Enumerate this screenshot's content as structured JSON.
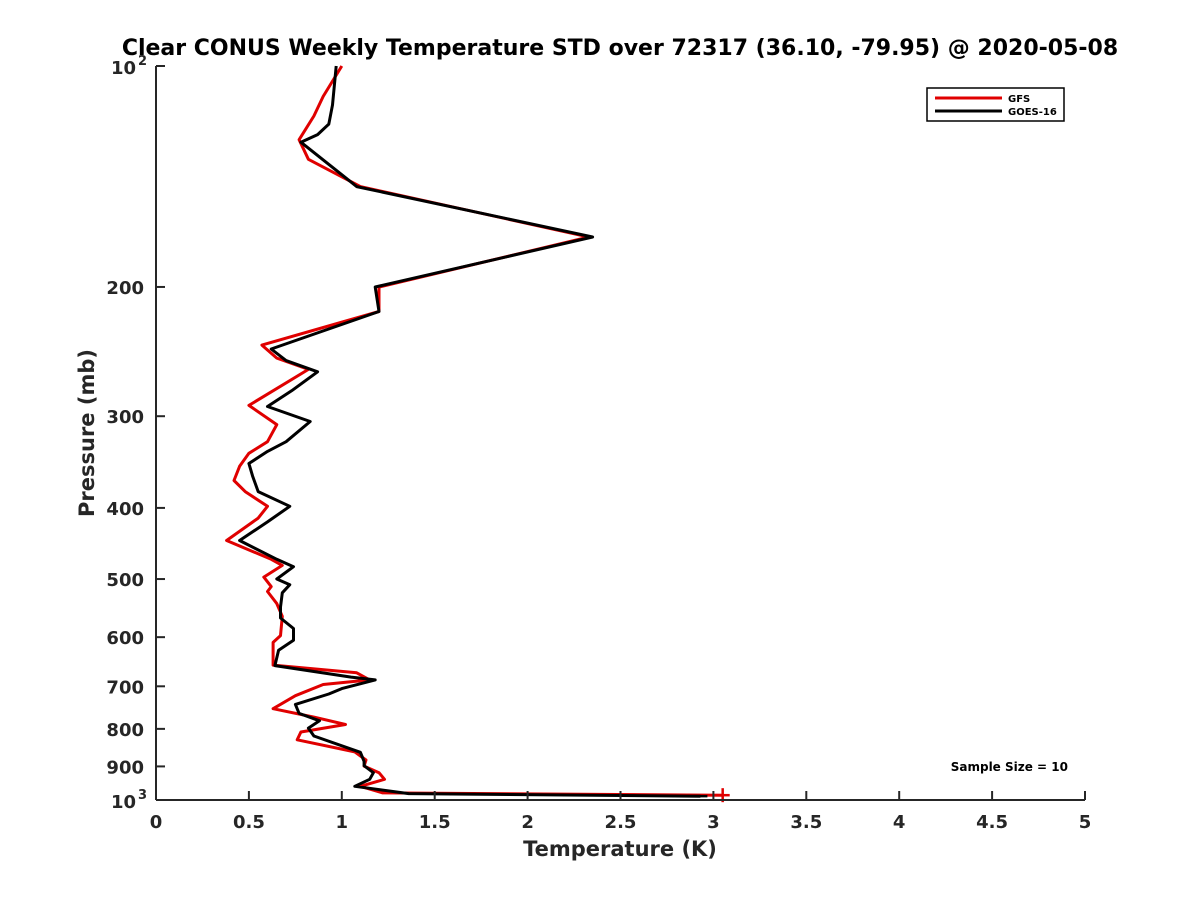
{
  "chart_data": {
    "type": "line",
    "title": "Clear CONUS Weekly Temperature STD over 72317 (36.10, -79.95) @ 2020-05-08",
    "xlabel": "Temperature (K)",
    "ylabel": "Pressure (mb)",
    "xlim": [
      0,
      5
    ],
    "ylim": [
      100,
      1000
    ],
    "y_scale": "log",
    "y_reversed": true,
    "x_ticks": [
      {
        "value": 0,
        "label": "0"
      },
      {
        "value": 0.5,
        "label": "0.5"
      },
      {
        "value": 1,
        "label": "1"
      },
      {
        "value": 1.5,
        "label": "1.5"
      },
      {
        "value": 2,
        "label": "2"
      },
      {
        "value": 2.5,
        "label": "2.5"
      },
      {
        "value": 3,
        "label": "3"
      },
      {
        "value": 3.5,
        "label": "3.5"
      },
      {
        "value": 4,
        "label": "4"
      },
      {
        "value": 4.5,
        "label": "4.5"
      },
      {
        "value": 5,
        "label": "5"
      }
    ],
    "y_ticks": [
      {
        "value": 100,
        "label": "10",
        "exp": "2"
      },
      {
        "value": 200,
        "label": "200"
      },
      {
        "value": 300,
        "label": "300"
      },
      {
        "value": 400,
        "label": "400"
      },
      {
        "value": 500,
        "label": "500"
      },
      {
        "value": 600,
        "label": "600"
      },
      {
        "value": 700,
        "label": "700"
      },
      {
        "value": 800,
        "label": "800"
      },
      {
        "value": 900,
        "label": "900"
      },
      {
        "value": 1000,
        "label": "10",
        "exp": "3"
      }
    ],
    "grid": false,
    "legend_position": "top-right",
    "annotation": "Sample Size = 10",
    "series": [
      {
        "name": "GFS",
        "color": "#e00000",
        "points": [
          [
            1.0,
            100
          ],
          [
            0.9,
            110
          ],
          [
            0.85,
            117
          ],
          [
            0.77,
            126
          ],
          [
            0.82,
            134
          ],
          [
            1.1,
            146
          ],
          [
            2.33,
            171
          ],
          [
            1.2,
            200
          ],
          [
            1.2,
            216
          ],
          [
            0.57,
            240
          ],
          [
            0.65,
            250
          ],
          [
            0.82,
            259
          ],
          [
            0.5,
            290
          ],
          [
            0.65,
            308
          ],
          [
            0.6,
            325
          ],
          [
            0.5,
            337
          ],
          [
            0.45,
            351
          ],
          [
            0.42,
            367
          ],
          [
            0.48,
            380
          ],
          [
            0.6,
            398
          ],
          [
            0.55,
            413
          ],
          [
            0.38,
            443
          ],
          [
            0.62,
            470
          ],
          [
            0.68,
            479
          ],
          [
            0.58,
            497
          ],
          [
            0.62,
            512
          ],
          [
            0.6,
            520
          ],
          [
            0.65,
            540
          ],
          [
            0.68,
            562
          ],
          [
            0.67,
            597
          ],
          [
            0.63,
            610
          ],
          [
            0.63,
            655
          ],
          [
            1.08,
            671
          ],
          [
            1.15,
            686
          ],
          [
            0.9,
            696
          ],
          [
            0.75,
            721
          ],
          [
            0.63,
            751
          ],
          [
            0.85,
            771
          ],
          [
            1.02,
            789
          ],
          [
            0.78,
            808
          ],
          [
            0.76,
            828
          ],
          [
            1.07,
            860
          ],
          [
            1.13,
            882
          ],
          [
            1.12,
            899
          ],
          [
            1.2,
            918
          ],
          [
            1.23,
            937
          ],
          [
            1.1,
            958
          ],
          [
            1.22,
            978
          ],
          [
            3.05,
            985
          ]
        ]
      },
      {
        "name": "GOES-16",
        "color": "#000000",
        "points": [
          [
            0.97,
            100
          ],
          [
            0.95,
            113
          ],
          [
            0.93,
            120
          ],
          [
            0.87,
            124
          ],
          [
            0.78,
            127
          ],
          [
            1.08,
            146
          ],
          [
            2.35,
            171
          ],
          [
            1.18,
            200
          ],
          [
            1.2,
            216
          ],
          [
            0.62,
            243
          ],
          [
            0.7,
            252
          ],
          [
            0.87,
            261
          ],
          [
            0.73,
            277
          ],
          [
            0.6,
            291
          ],
          [
            0.83,
            305
          ],
          [
            0.7,
            325
          ],
          [
            0.6,
            335
          ],
          [
            0.5,
            348
          ],
          [
            0.52,
            362
          ],
          [
            0.55,
            380
          ],
          [
            0.72,
            398
          ],
          [
            0.6,
            418
          ],
          [
            0.45,
            443
          ],
          [
            0.65,
            470
          ],
          [
            0.74,
            481
          ],
          [
            0.65,
            500
          ],
          [
            0.72,
            509
          ],
          [
            0.68,
            522
          ],
          [
            0.67,
            546
          ],
          [
            0.67,
            565
          ],
          [
            0.74,
            584
          ],
          [
            0.74,
            606
          ],
          [
            0.66,
            625
          ],
          [
            0.64,
            656
          ],
          [
            1.05,
            680
          ],
          [
            1.18,
            686
          ],
          [
            1.0,
            705
          ],
          [
            0.93,
            717
          ],
          [
            0.75,
            741
          ],
          [
            0.77,
            762
          ],
          [
            0.88,
            780
          ],
          [
            0.82,
            798
          ],
          [
            0.85,
            818
          ],
          [
            1.1,
            861
          ],
          [
            1.12,
            886
          ],
          [
            1.12,
            898
          ],
          [
            1.17,
            918
          ],
          [
            1.15,
            937
          ],
          [
            1.07,
            958
          ],
          [
            1.36,
            980
          ],
          [
            2.93,
            988
          ]
        ]
      }
    ]
  }
}
